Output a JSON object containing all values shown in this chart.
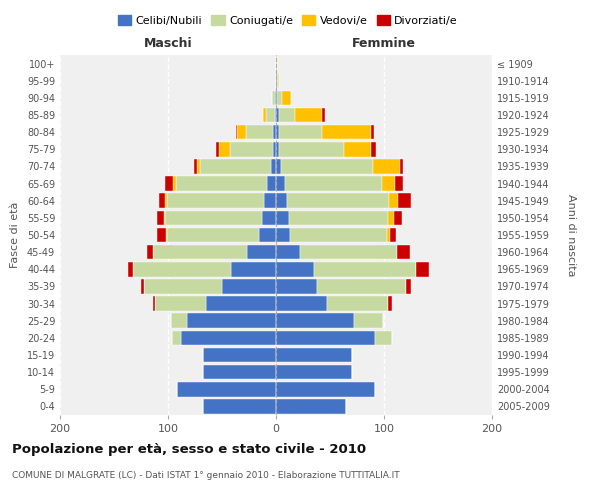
{
  "age_groups": [
    "0-4",
    "5-9",
    "10-14",
    "15-19",
    "20-24",
    "25-29",
    "30-34",
    "35-39",
    "40-44",
    "45-49",
    "50-54",
    "55-59",
    "60-64",
    "65-69",
    "70-74",
    "75-79",
    "80-84",
    "85-89",
    "90-94",
    "95-99",
    "100+"
  ],
  "birth_years": [
    "2005-2009",
    "2000-2004",
    "1995-1999",
    "1990-1994",
    "1985-1989",
    "1980-1984",
    "1975-1979",
    "1970-1974",
    "1965-1969",
    "1960-1964",
    "1955-1959",
    "1950-1954",
    "1945-1949",
    "1940-1944",
    "1935-1939",
    "1930-1934",
    "1925-1929",
    "1920-1924",
    "1915-1919",
    "1910-1914",
    "≤ 1909"
  ],
  "colors": {
    "celibi": "#4472c4",
    "coniugati": "#c5d9a0",
    "vedovi": "#ffc000",
    "divorziati": "#cc0000"
  },
  "maschi": {
    "celibi": [
      68,
      92,
      68,
      68,
      88,
      82,
      65,
      50,
      42,
      27,
      16,
      13,
      11,
      8,
      5,
      3,
      3,
      1,
      1,
      0,
      0
    ],
    "coniugati": [
      0,
      0,
      0,
      0,
      8,
      15,
      47,
      72,
      90,
      87,
      85,
      90,
      90,
      85,
      65,
      40,
      25,
      8,
      3,
      0,
      0
    ],
    "vedovi": [
      0,
      0,
      0,
      0,
      0,
      0,
      0,
      0,
      0,
      0,
      1,
      1,
      2,
      2,
      3,
      10,
      8,
      3,
      0,
      0,
      0
    ],
    "divorziati": [
      0,
      0,
      0,
      0,
      0,
      0,
      2,
      3,
      5,
      5,
      8,
      6,
      5,
      8,
      3,
      3,
      1,
      0,
      0,
      0,
      0
    ]
  },
  "femmine": {
    "celibi": [
      65,
      92,
      70,
      70,
      92,
      72,
      47,
      38,
      35,
      22,
      13,
      12,
      10,
      8,
      5,
      3,
      3,
      3,
      1,
      1,
      0
    ],
    "coniugati": [
      0,
      0,
      0,
      0,
      15,
      27,
      57,
      82,
      95,
      90,
      90,
      92,
      95,
      90,
      85,
      60,
      40,
      15,
      5,
      1,
      0
    ],
    "vedovi": [
      0,
      0,
      0,
      0,
      0,
      0,
      0,
      0,
      0,
      0,
      3,
      5,
      8,
      12,
      25,
      25,
      45,
      25,
      8,
      1,
      1
    ],
    "divorziati": [
      0,
      0,
      0,
      0,
      0,
      0,
      3,
      5,
      12,
      12,
      5,
      8,
      12,
      8,
      3,
      5,
      3,
      2,
      0,
      0,
      0
    ]
  },
  "xlim": 200,
  "title": "Popolazione per età, sesso e stato civile - 2010",
  "subtitle": "COMUNE DI MALGRATE (LC) - Dati ISTAT 1° gennaio 2010 - Elaborazione TUTTITALIA.IT",
  "ylabel_left": "Fasce di età",
  "ylabel_right": "Anni di nascita",
  "xlabel_left": "Maschi",
  "xlabel_right": "Femmine",
  "bg_color": "#ffffff",
  "plot_bg": "#f0f0f0"
}
